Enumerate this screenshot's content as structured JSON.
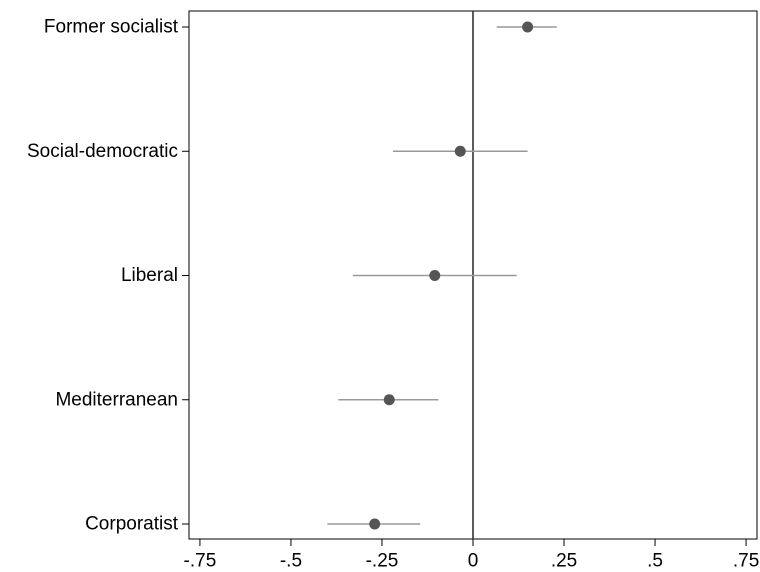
{
  "chart_data": {
    "type": "scatter",
    "title": "",
    "xlabel": "",
    "ylabel": "",
    "xlim": [
      -0.78,
      0.78
    ],
    "categories": [
      "Former socialist",
      "Social-democratic",
      "Liberal",
      "Mediterranean",
      "Corporatist"
    ],
    "x_ticks": [
      -0.75,
      -0.5,
      -0.25,
      0,
      0.25,
      0.5,
      0.75
    ],
    "x_tick_labels": [
      "-.75",
      "-.5",
      "-.25",
      "0",
      ".25",
      ".5",
      ".75"
    ],
    "reference_line_x": 0,
    "grid": false,
    "series": [
      {
        "estimates": [
          0.15,
          -0.035,
          -0.105,
          -0.23,
          -0.27
        ],
        "ci_low": [
          0.065,
          -0.22,
          -0.33,
          -0.37,
          -0.4
        ],
        "ci_high": [
          0.23,
          0.15,
          0.12,
          -0.095,
          -0.145
        ]
      }
    ],
    "colors": {
      "point": "#555555",
      "ci_line": "#999999",
      "reference_line": "#333333",
      "axis": "#000000"
    }
  }
}
